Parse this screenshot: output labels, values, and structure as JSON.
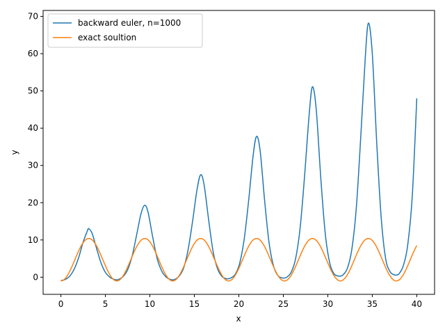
{
  "chart_data": {
    "type": "line",
    "title": "",
    "xlabel": "x",
    "ylabel": "y",
    "xlim": [
      -2,
      42
    ],
    "ylim": [
      -4.6,
      71.6
    ],
    "xticks": [
      0,
      5,
      10,
      15,
      20,
      25,
      30,
      35,
      40
    ],
    "yticks": [
      0,
      10,
      20,
      30,
      40,
      50,
      60,
      70
    ],
    "grid": false,
    "legend": "top-left",
    "colors": {
      "series1": "#1f77b4",
      "series2": "#ff7f0e"
    },
    "series": [
      {
        "name": "backward euler, n=1000",
        "color": "#1f77b4",
        "x": [
          0,
          0.5,
          1.0,
          1.5,
          2.0,
          2.5,
          3.0,
          3.14,
          3.5,
          4.0,
          4.5,
          5.0,
          5.5,
          6.0,
          6.28,
          6.5,
          7.0,
          7.5,
          8.0,
          8.5,
          9.0,
          9.42,
          9.8,
          10.3,
          10.8,
          11.3,
          11.8,
          12.3,
          12.57,
          12.8,
          13.3,
          13.8,
          14.3,
          14.8,
          15.3,
          15.71,
          16.1,
          16.6,
          17.1,
          17.6,
          18.1,
          18.6,
          18.85,
          19.1,
          19.6,
          20.1,
          20.6,
          21.1,
          21.6,
          21.99,
          22.4,
          22.9,
          23.4,
          23.9,
          24.4,
          24.9,
          25.13,
          25.4,
          25.9,
          26.4,
          26.9,
          27.4,
          27.9,
          28.27,
          28.7,
          29.2,
          29.7,
          30.2,
          30.7,
          31.2,
          31.42,
          31.7,
          32.2,
          32.7,
          33.2,
          33.7,
          34.2,
          34.56,
          35.0,
          35.5,
          36.0,
          36.5,
          37.0,
          37.5,
          37.7,
          38.0,
          38.5,
          39.0,
          39.5,
          40.0
        ],
        "values": [
          -0.9,
          -0.6,
          0.3,
          2.2,
          5.3,
          9.4,
          12.6,
          13.0,
          11.8,
          7.8,
          3.9,
          1.3,
          0.0,
          -0.6,
          -0.7,
          -0.6,
          0.2,
          2.0,
          5.6,
          11.2,
          17.0,
          19.3,
          17.4,
          11.0,
          5.2,
          1.8,
          0.1,
          -0.6,
          -0.7,
          -0.6,
          0.3,
          2.5,
          7.4,
          15.0,
          23.5,
          27.5,
          24.7,
          15.5,
          7.0,
          2.3,
          0.2,
          -0.4,
          -0.4,
          -0.2,
          0.8,
          3.8,
          10.2,
          20.5,
          32.5,
          37.8,
          33.8,
          20.5,
          9.2,
          3.0,
          0.4,
          -0.2,
          -0.2,
          0.0,
          1.4,
          5.2,
          13.5,
          27.5,
          43.5,
          51.1,
          45.0,
          27.0,
          12.0,
          4.0,
          0.9,
          0.3,
          0.3,
          0.6,
          2.4,
          7.5,
          18.5,
          37.5,
          58.5,
          68.2,
          60.0,
          36.0,
          16.0,
          5.0,
          1.5,
          0.6,
          0.6,
          0.9,
          3.2,
          9.0,
          22.0,
          48.0
        ]
      },
      {
        "name": "exact soultion",
        "color": "#ff7f0e",
        "fn": "y = 11.4*(1-cos(x))/2 - 1.0"
      }
    ]
  }
}
